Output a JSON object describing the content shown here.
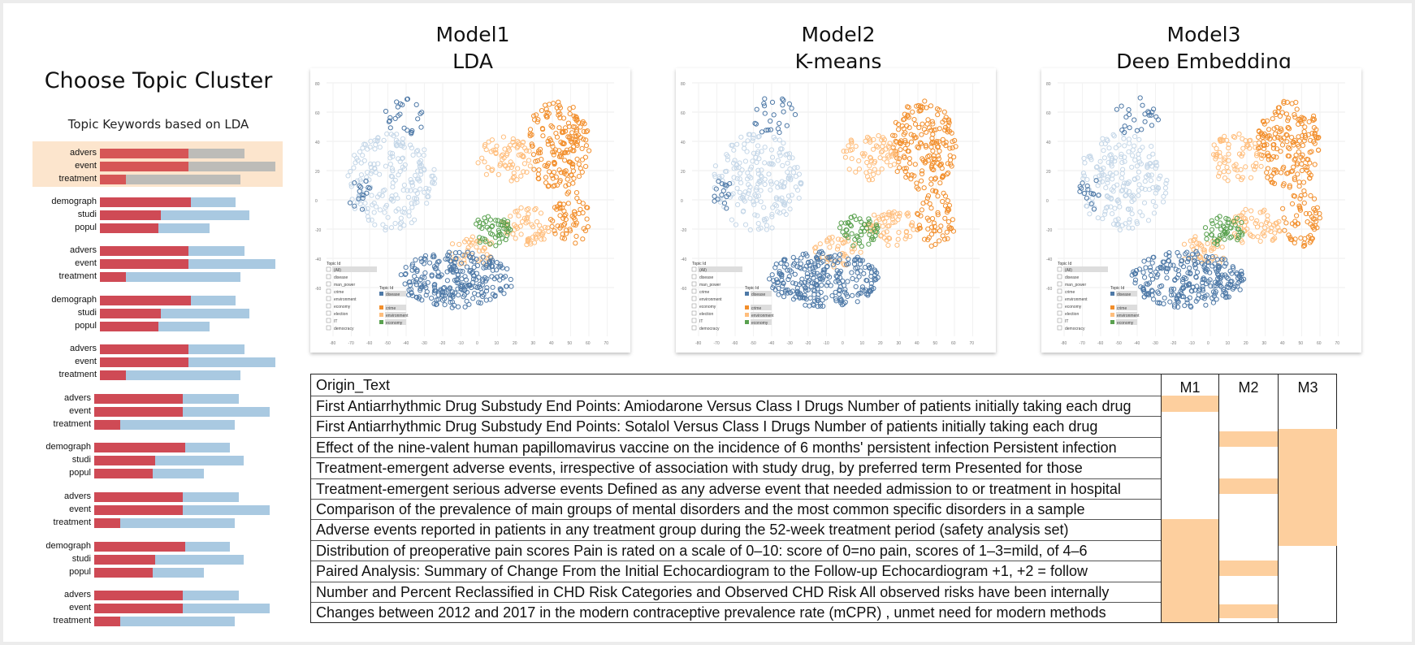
{
  "left_panel": {
    "title": "Choose Topic Cluster",
    "keywords_label": "Topic Keywords based on LDA",
    "groups": [
      {
        "selected": true,
        "rows": [
          {
            "label": "advers",
            "fg": 0.38,
            "total": 0.62
          },
          {
            "label": "event",
            "fg": 0.38,
            "total": 0.75
          },
          {
            "label": "treatment",
            "fg": 0.11,
            "total": 0.6
          }
        ]
      },
      {
        "selected": false,
        "rows": [
          {
            "label": "demograph",
            "fg": 0.39,
            "total": 0.58
          },
          {
            "label": "studi",
            "fg": 0.26,
            "total": 0.64
          },
          {
            "label": "popul",
            "fg": 0.25,
            "total": 0.47
          }
        ]
      },
      {
        "selected": false,
        "rows": [
          {
            "label": "advers",
            "fg": 0.38,
            "total": 0.62
          },
          {
            "label": "event",
            "fg": 0.38,
            "total": 0.75
          },
          {
            "label": "treatment",
            "fg": 0.11,
            "total": 0.6
          }
        ]
      },
      {
        "selected": false,
        "rows": [
          {
            "label": "demograph",
            "fg": 0.39,
            "total": 0.58
          },
          {
            "label": "studi",
            "fg": 0.26,
            "total": 0.64
          },
          {
            "label": "popul",
            "fg": 0.25,
            "total": 0.47
          }
        ]
      },
      {
        "selected": false,
        "rows": [
          {
            "label": "advers",
            "fg": 0.38,
            "total": 0.62
          },
          {
            "label": "event",
            "fg": 0.38,
            "total": 0.75
          },
          {
            "label": "treatment",
            "fg": 0.11,
            "total": 0.6
          }
        ]
      },
      {
        "selected": false,
        "rows": [
          {
            "label": "advers",
            "fg": 0.38,
            "total": 0.62
          },
          {
            "label": "event",
            "fg": 0.38,
            "total": 0.75
          },
          {
            "label": "treatment",
            "fg": 0.11,
            "total": 0.6
          }
        ]
      },
      {
        "selected": false,
        "rows": [
          {
            "label": "demograph",
            "fg": 0.39,
            "total": 0.58
          },
          {
            "label": "studi",
            "fg": 0.26,
            "total": 0.64
          },
          {
            "label": "popul",
            "fg": 0.25,
            "total": 0.47
          }
        ]
      },
      {
        "selected": false,
        "rows": [
          {
            "label": "advers",
            "fg": 0.38,
            "total": 0.62
          },
          {
            "label": "event",
            "fg": 0.38,
            "total": 0.75
          },
          {
            "label": "treatment",
            "fg": 0.11,
            "total": 0.6
          }
        ]
      },
      {
        "selected": false,
        "rows": [
          {
            "label": "demograph",
            "fg": 0.39,
            "total": 0.58
          },
          {
            "label": "studi",
            "fg": 0.26,
            "total": 0.64
          },
          {
            "label": "popul",
            "fg": 0.25,
            "total": 0.47
          }
        ]
      },
      {
        "selected": false,
        "rows": [
          {
            "label": "advers",
            "fg": 0.38,
            "total": 0.62
          },
          {
            "label": "event",
            "fg": 0.38,
            "total": 0.75
          },
          {
            "label": "treatment",
            "fg": 0.11,
            "total": 0.6
          }
        ]
      }
    ]
  },
  "models": [
    {
      "line1": "Model1",
      "line2": "LDA"
    },
    {
      "line1": "Model2",
      "line2": "K-means"
    },
    {
      "line1": "Model3",
      "line2": "Deep Embedding"
    }
  ],
  "plot": {
    "x_ticks": [
      "-80",
      "-70",
      "-60",
      "-50",
      "-40",
      "-30",
      "-20",
      "-10",
      "0",
      "10",
      "20",
      "30",
      "40",
      "50",
      "60",
      "70"
    ],
    "y_ticks": [
      "80",
      "60",
      "40",
      "20",
      "0",
      "-20",
      "-40",
      "-60"
    ],
    "legend_title": "Topic Id",
    "legend_items": [
      "(All)",
      "disease",
      "man_power",
      "crime",
      "environment",
      "economy",
      "election",
      "IT",
      "democracy"
    ],
    "legend2_title": "Topic Id",
    "legend2_items": [
      "disease",
      "crime",
      "environment",
      "economy"
    ],
    "colors": {
      "blue": "#4e79a7",
      "light_blue": "#c5d7e8",
      "orange": "#f28e2b",
      "light_orange": "#ffbe7d",
      "green": "#59a14f"
    }
  },
  "table": {
    "header": "Origin_Text",
    "columns": [
      "M1",
      "M2",
      "M3"
    ],
    "rows": [
      "First Antiarrhythmic Drug Substudy End Points: Amiodarone Versus Class I Drugs Number of patients initially taking each drug",
      "First Antiarrhythmic Drug Substudy End Points: Sotalol Versus Class I Drugs Number of patients initially taking each drug",
      "Effect of the nine-valent human papillomavirus vaccine on the incidence of 6 months' persistent infection Persistent infection",
      "Treatment-emergent adverse events, irrespective of association with study drug, by preferred term Presented for those",
      "Treatment-emergent serious adverse events Defined as any adverse event that needed admission to or treatment in hospital",
      "Comparison of the prevalence of main groups of mental disorders and the most common specific disorders in a sample",
      "Adverse events reported in patients in any treatment group during the 52-week treatment period  (safety analysis set)",
      "Distribution of preoperative pain scores Pain is rated on a scale of 0–10: score of 0=no pain, scores of 1–3=mild, of 4–6",
      "Paired Analysis: Summary of Change From the Initial Echocardiogram to the Follow-up Echocardiogram +1, +2 = follow",
      "Number and Percent Reclassified in CHD Risk Categories and Observed CHD Risk All observed risks have been internally",
      "Changes between 2012 and 2017 in the modern contraceptive prevalence rate  (mCPR) , unmet need for modern methods"
    ],
    "assignments": {
      "M1": [
        [
          0,
          0.8
        ],
        [
          6,
          11
        ]
      ],
      "M2": [
        [
          1.75,
          2.5
        ],
        [
          4,
          4.75
        ],
        [
          8,
          8.75
        ],
        [
          10.1,
          10.8
        ]
      ],
      "M3": [
        [
          1.6,
          7.3
        ]
      ]
    }
  }
}
